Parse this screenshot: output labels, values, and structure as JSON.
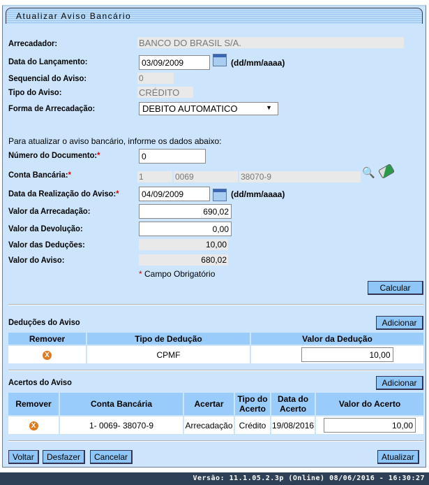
{
  "title": "Atualizar Aviso Bancário",
  "fields": {
    "arrecadador": {
      "label": "Arrecadador:",
      "value": "BANCO DO BRASIL S/A."
    },
    "data_lancamento": {
      "label": "Data do Lançamento:",
      "value": "03/09/2009",
      "hint": "(dd/mm/aaaa)"
    },
    "sequencial": {
      "label": "Sequencial do Aviso:",
      "value": "0"
    },
    "tipo": {
      "label": "Tipo do Aviso:",
      "value": "CRÉDITO"
    },
    "forma": {
      "label": "Forma de Arrecadação:",
      "value": "DEBITO AUTOMATICO"
    },
    "instructions": "Para atualizar o aviso bancário, informe os dados abaixo:",
    "numero_documento": {
      "label": "Número do Documento:",
      "value": "0"
    },
    "conta": {
      "label": "Conta Bancária:",
      "banco": "1",
      "agencia": "0069",
      "conta": "38070-9"
    },
    "data_realizacao": {
      "label": "Data da Realização do Aviso:",
      "value": "04/09/2009",
      "hint": "(dd/mm/aaaa)"
    },
    "valor_arrecadacao": {
      "label": "Valor da Arrecadação:",
      "value": "690,02"
    },
    "valor_devolucao": {
      "label": "Valor da Devolução:",
      "value": "0,00"
    },
    "valor_deducoes": {
      "label": "Valor das Deduções:",
      "value": "10,00"
    },
    "valor_aviso": {
      "label": "Valor do Aviso:",
      "value": "680,02"
    },
    "required_star": "*",
    "required_note": "Campo Obrigatório"
  },
  "calcular": "Calcular",
  "deducoes": {
    "title": "Deduções do Aviso",
    "add": "Adicionar",
    "headers": [
      "Remover",
      "Tipo de Dedução",
      "Valor da Dedução"
    ],
    "rows": [
      {
        "tipo": "CPMF",
        "valor": "10,00"
      }
    ]
  },
  "acertos": {
    "title": "Acertos do Aviso",
    "add": "Adicionar",
    "headers": [
      "Remover",
      "Conta Bancária",
      "Acertar",
      "Tipo do Acerto",
      "Data do Acerto",
      "Valor do Acerto"
    ],
    "rows": [
      {
        "conta": "1- 0069- 38070-9",
        "acertar": "Arrecadação",
        "tipo": "Crédito",
        "data": "19/08/2016",
        "valor": "10,00"
      }
    ]
  },
  "remove_glyph": "X",
  "buttons": {
    "voltar": "Voltar",
    "desfazer": "Desfazer",
    "cancelar": "Cancelar",
    "atualizar": "Atualizar"
  },
  "footer": "Versão: 11.1.05.2.3p (Online) 08/06/2016 - 16:30:27",
  "colors": {
    "background": "#cce5fc",
    "button": "#8fc6f8",
    "header": "#99ccfa",
    "footer": "#2e4056",
    "remove": "#e07a20"
  }
}
